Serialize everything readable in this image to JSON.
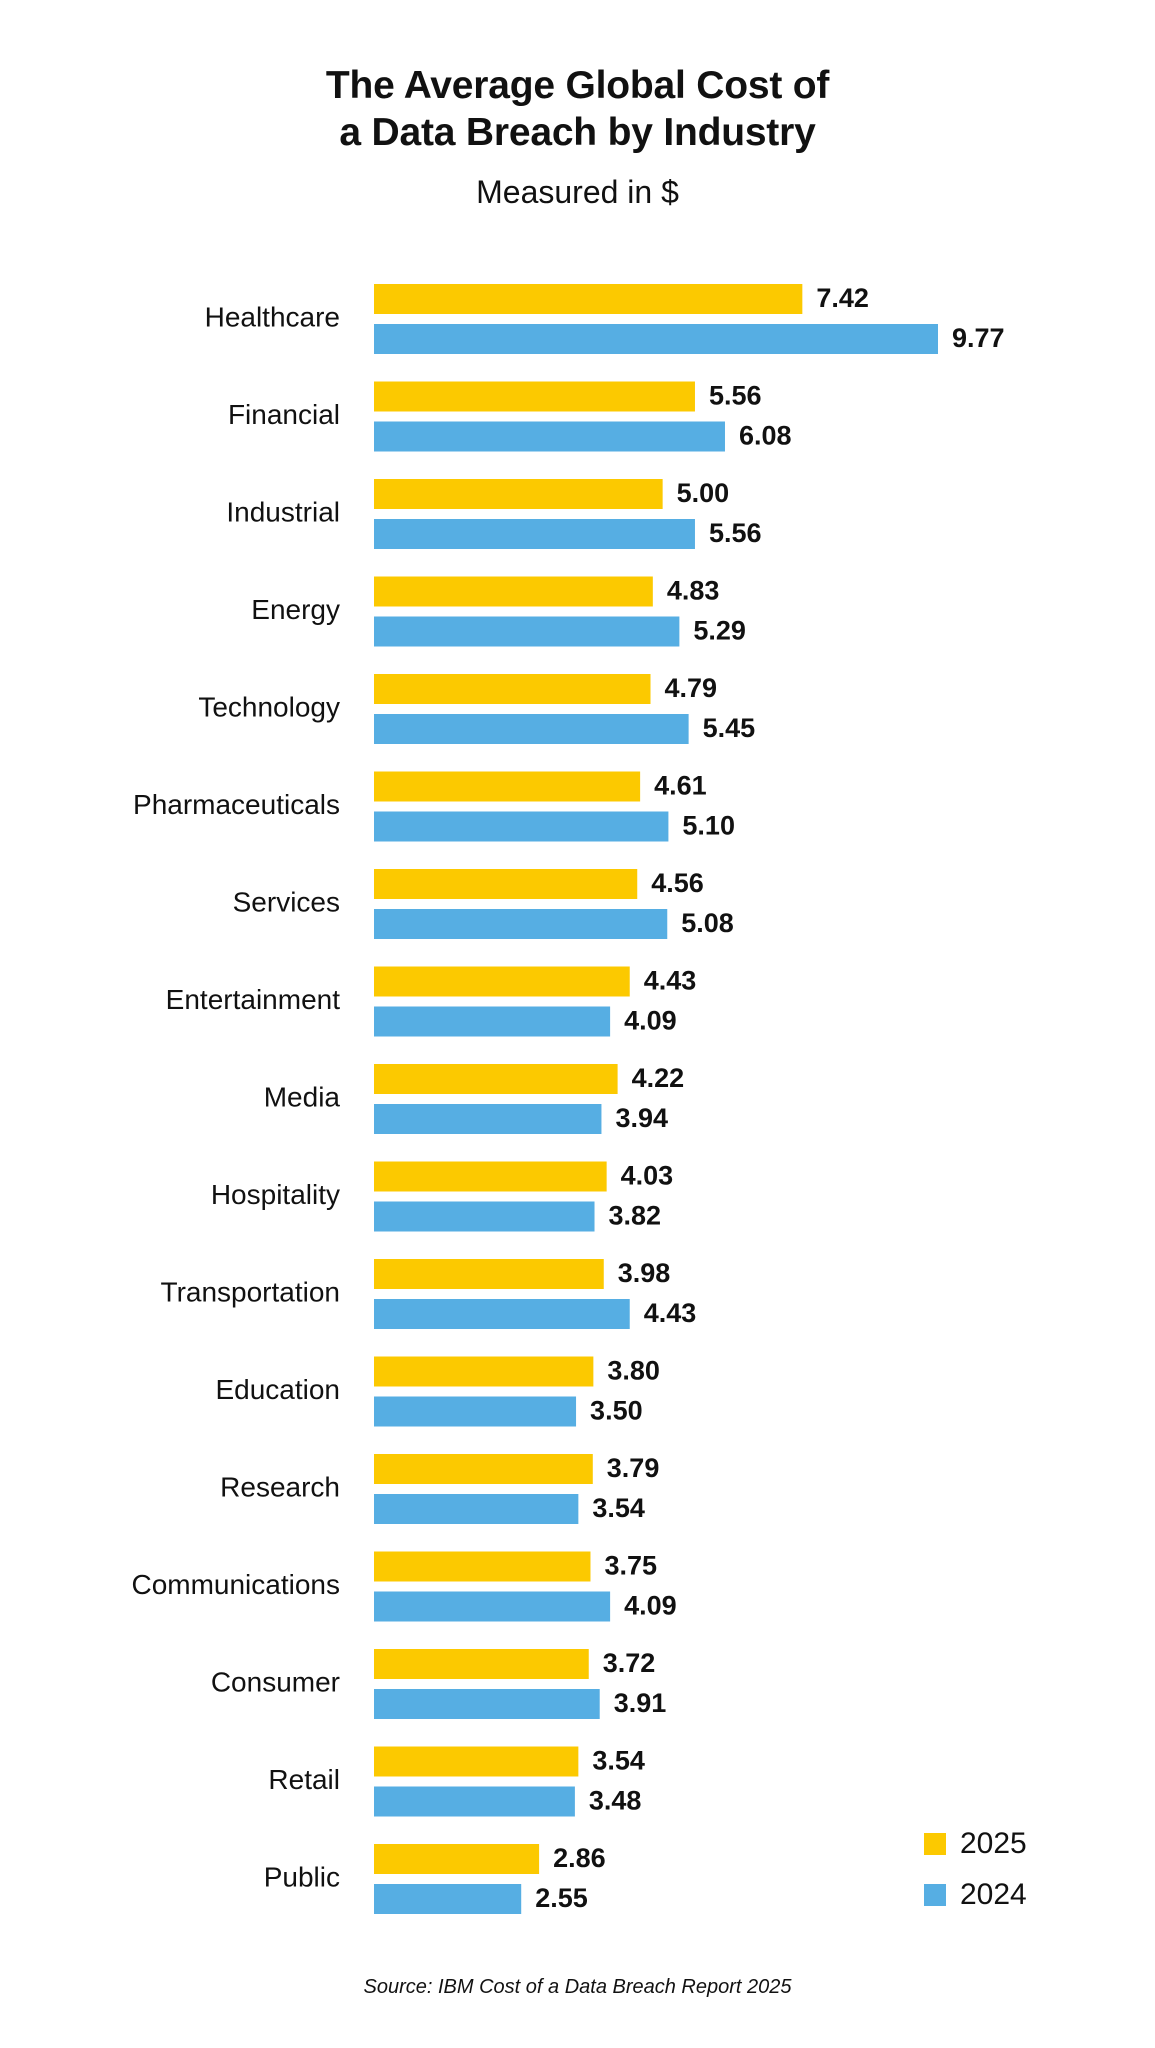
{
  "chart_data": {
    "type": "bar",
    "orientation": "horizontal",
    "title_lines": [
      "The Average Global Cost of",
      "a Data Breach by Industry"
    ],
    "subtitle": "Measured in $",
    "categories": [
      "Healthcare",
      "Financial",
      "Industrial",
      "Energy",
      "Technology",
      "Pharmaceuticals",
      "Services",
      "Entertainment",
      "Media",
      "Hospitality",
      "Transportation",
      "Education",
      "Research",
      "Communications",
      "Consumer",
      "Retail",
      "Public"
    ],
    "series": [
      {
        "name": "2025",
        "color": "#FCC900",
        "values": [
          7.42,
          5.56,
          5.0,
          4.83,
          4.79,
          4.61,
          4.56,
          4.43,
          4.22,
          4.03,
          3.98,
          3.8,
          3.79,
          3.75,
          3.72,
          3.54,
          2.86
        ],
        "labels": [
          "7.42",
          "5.56",
          "5.00",
          "4.83",
          "4.79",
          "4.61",
          "4.56",
          "4.43",
          "4.22",
          "4.03",
          "3.98",
          "3.80",
          "3.79",
          "3.75",
          "3.72",
          "3.54",
          "2.86"
        ]
      },
      {
        "name": "2024",
        "color": "#56AEE3",
        "values": [
          9.77,
          6.08,
          5.56,
          5.29,
          5.45,
          5.1,
          5.08,
          4.09,
          3.94,
          3.82,
          4.43,
          3.5,
          3.54,
          4.09,
          3.91,
          3.48,
          2.55
        ],
        "labels": [
          "9.77",
          "6.08",
          "5.56",
          "5.29",
          "5.45",
          "5.10",
          "5.08",
          "4.09",
          "3.94",
          "3.82",
          "4.43",
          "3.50",
          "3.54",
          "4.09",
          "3.91",
          "3.48",
          "2.55"
        ]
      }
    ],
    "xlim": [
      0,
      9.77
    ],
    "grid": false,
    "legend_position": "bottom-right",
    "source": "Source: IBM Cost of a Data Breach Report 2025"
  }
}
